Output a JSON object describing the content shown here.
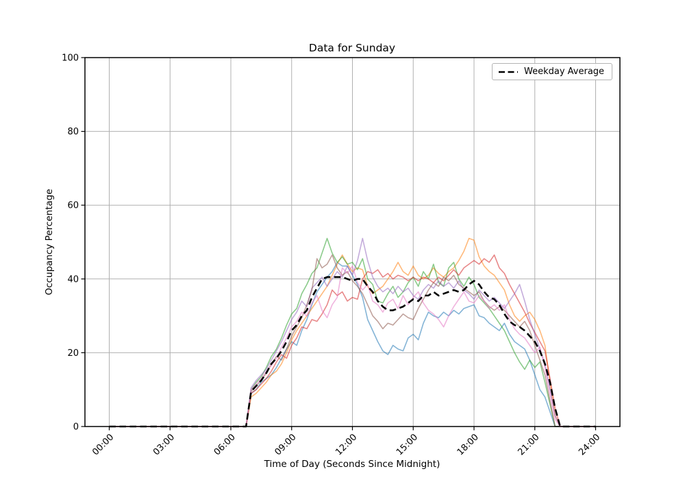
{
  "figure": {
    "background": "#ffffff"
  },
  "chart_data": {
    "type": "line",
    "title": "Data for Sunday",
    "xlabel": "Time of Day (Seconds Since Midnight)",
    "ylabel": "Occupancy Percentage",
    "ylim": [
      0,
      100
    ],
    "x_hours_range": [
      0,
      24
    ],
    "x_margin_hours": 1.2,
    "grid": true,
    "grid_color": "#b0b0b0",
    "x_tick_hours": [
      0,
      3,
      6,
      9,
      12,
      15,
      18,
      21,
      24
    ],
    "x_tick_labels": [
      "00:00",
      "03:00",
      "06:00",
      "09:00",
      "12:00",
      "15:00",
      "18:00",
      "21:00",
      "24:00"
    ],
    "y_ticks": [
      0,
      20,
      40,
      60,
      80,
      100
    ],
    "y_tick_labels": [
      "0",
      "20",
      "40",
      "60",
      "80",
      "100"
    ],
    "legend": {
      "label": "Weekday Average",
      "position": "upper right",
      "line_style": "dashed",
      "line_color": "#000000"
    },
    "sample_step_hours": 0.25,
    "active_start_hour": 6.75,
    "active_end_hour": 22.25,
    "padding_value": 0,
    "series_alpha": 0.55,
    "series": [
      {
        "name": "trace-blue",
        "color": "#1f77b4",
        "values": [
          0,
          9,
          10,
          12,
          13,
          14,
          16,
          18.5,
          21,
          23,
          22,
          26,
          29,
          33,
          36.5,
          38.5,
          40.5,
          42,
          44.5,
          43.5,
          43.5,
          41,
          38.5,
          35,
          29,
          26,
          23,
          20.5,
          19.5,
          22,
          21,
          20.5,
          24,
          25,
          23.5,
          28,
          31,
          30,
          29.5,
          31,
          30,
          31.5,
          30.5,
          32,
          32.5,
          33,
          30,
          29.5,
          28,
          27,
          26,
          28,
          25,
          23,
          22,
          21,
          18,
          14,
          10,
          8,
          4,
          0,
          0
        ]
      },
      {
        "name": "trace-orange",
        "color": "#ff7f0e",
        "values": [
          0,
          8,
          9,
          10.5,
          12,
          14,
          15,
          17,
          20,
          23.5,
          26,
          28,
          30,
          32,
          34,
          36,
          38,
          41,
          44,
          46.5,
          44,
          42,
          43,
          42.5,
          38,
          36,
          37,
          38,
          40,
          42,
          44.5,
          42,
          41,
          43.5,
          41,
          40,
          41,
          43,
          41.5,
          40.5,
          42,
          43,
          45,
          47.5,
          51,
          50.5,
          46,
          43.5,
          42,
          41,
          39,
          37,
          33,
          30,
          28.5,
          30,
          31,
          29,
          26,
          22,
          12,
          3,
          0
        ]
      },
      {
        "name": "trace-green",
        "color": "#2ca02c",
        "values": [
          0,
          10,
          12,
          13.5,
          16,
          19,
          21,
          24,
          27.5,
          30.5,
          32,
          36,
          38.5,
          41.5,
          43,
          47,
          51,
          47,
          44.5,
          46,
          44,
          44.5,
          42.5,
          45.5,
          40,
          38.5,
          34,
          33.5,
          36,
          38,
          35,
          36.5,
          39,
          40.5,
          38,
          42,
          40,
          44,
          39,
          38,
          43,
          44.5,
          40,
          38,
          40.5,
          38.5,
          35,
          33.5,
          32,
          30,
          28,
          26,
          23,
          20,
          17.5,
          15.5,
          18,
          16,
          17.5,
          12,
          6,
          0,
          0
        ]
      },
      {
        "name": "trace-red",
        "color": "#d62728",
        "values": [
          0,
          9,
          10,
          11.5,
          13,
          15,
          17.5,
          19.5,
          18.5,
          22,
          24,
          27,
          26.5,
          29,
          28.5,
          30.5,
          33,
          37,
          35.5,
          36.5,
          34,
          35,
          34.5,
          40,
          42,
          41.5,
          42.5,
          40.5,
          41.5,
          40,
          41,
          40.5,
          39.5,
          40.5,
          39.5,
          40.5,
          40,
          39,
          40.5,
          39.5,
          41,
          42.5,
          41,
          43,
          44,
          45,
          44,
          45.5,
          44.5,
          46.5,
          43,
          41.5,
          38.5,
          36,
          33.5,
          31,
          28,
          25.5,
          23,
          20.5,
          13,
          5,
          0
        ]
      },
      {
        "name": "trace-purple",
        "color": "#9467bd",
        "values": [
          0,
          10.5,
          12.5,
          14,
          15.5,
          18,
          20.5,
          23,
          26,
          29,
          31,
          34,
          32.5,
          37.5,
          39,
          40.5,
          38,
          40,
          42,
          40.5,
          43.5,
          41,
          45,
          51,
          45,
          40.5,
          38,
          36.5,
          37.5,
          36,
          38,
          36.5,
          37.5,
          35.5,
          34.5,
          37,
          38.5,
          37.5,
          39.5,
          38,
          39,
          37.5,
          39.5,
          37,
          36,
          34.5,
          37,
          35.5,
          34,
          35,
          33.5,
          32,
          34,
          36,
          38.5,
          34,
          29,
          25,
          21,
          17,
          10,
          3,
          0
        ]
      },
      {
        "name": "trace-brown",
        "color": "#8c564b",
        "values": [
          0,
          9.5,
          11,
          12.5,
          14.5,
          17,
          19,
          18,
          21,
          24.5,
          27,
          29.5,
          33,
          37,
          45.5,
          43,
          44,
          46.5,
          43,
          41,
          42,
          39.5,
          38,
          36,
          33,
          30,
          28.5,
          26.5,
          28,
          27.5,
          29,
          30.5,
          29.5,
          29,
          32,
          34.5,
          37,
          39,
          38,
          40.5,
          39.5,
          41,
          38.5,
          37.5,
          36.5,
          35.5,
          36.5,
          34,
          32.5,
          31.5,
          32.5,
          31.5,
          30,
          28.5,
          27,
          28.5,
          26,
          22,
          18,
          14,
          7,
          0,
          0
        ]
      },
      {
        "name": "trace-pink",
        "color": "#e377c2",
        "values": [
          0,
          10,
          11.5,
          13,
          15,
          16.5,
          18.5,
          21.5,
          24,
          27,
          28.5,
          31,
          30,
          33.5,
          35.5,
          31.5,
          29.5,
          33,
          35,
          43,
          41.5,
          43.5,
          39,
          37,
          38.5,
          34,
          33,
          31,
          33.5,
          34.5,
          32,
          35.5,
          33,
          35,
          36.5,
          33.5,
          31.5,
          30.5,
          29,
          27,
          30,
          32.5,
          34.5,
          36.5,
          34,
          33.5,
          35.5,
          34,
          32,
          33,
          31.5,
          33,
          29,
          26.5,
          25,
          24,
          22,
          20,
          21.5,
          16,
          9,
          2,
          0
        ]
      }
    ],
    "average": {
      "name": "Weekday Average",
      "color": "#000000",
      "dash": [
        9.5,
        5.5
      ],
      "width": 2.6,
      "values": [
        0,
        9.5,
        11,
        12.5,
        14.5,
        17,
        18.5,
        20.5,
        23,
        26,
        27.5,
        30,
        31.5,
        35,
        37.5,
        40,
        40.5,
        40.5,
        40.5,
        40.5,
        40,
        39.5,
        40,
        40,
        38,
        36.5,
        34,
        32.5,
        31.5,
        31.5,
        32,
        32.5,
        33.5,
        34.5,
        34,
        35.5,
        35.5,
        36.5,
        35.5,
        36,
        36.5,
        37,
        36.5,
        37,
        38.5,
        39.5,
        38.5,
        36.5,
        35,
        34.5,
        33,
        30.5,
        28.5,
        27.5,
        27,
        26,
        24.5,
        23,
        20.5,
        17,
        12,
        5,
        0
      ]
    }
  }
}
